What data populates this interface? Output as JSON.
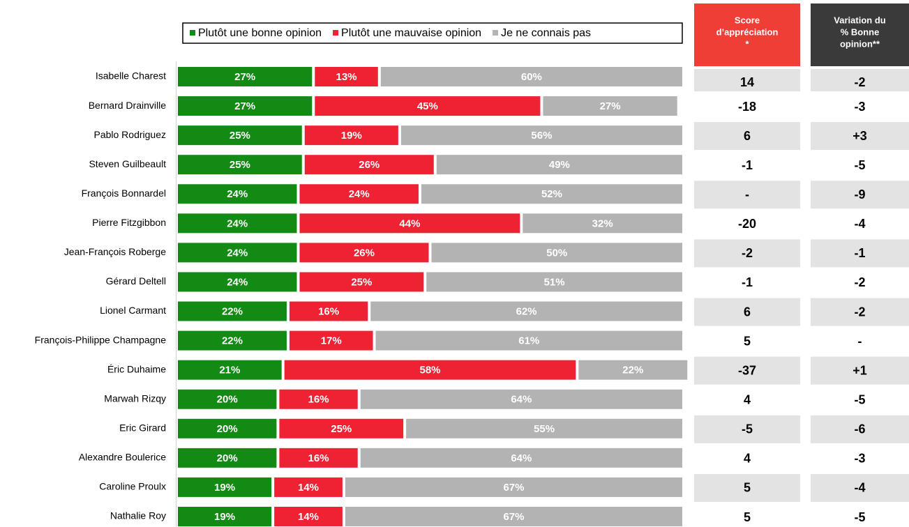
{
  "chart_data": {
    "type": "stacked-bar-horizontal",
    "categories": [
      "Isabelle Charest",
      "Bernard Drainville",
      "Pablo Rodriguez",
      "Steven Guilbeault",
      "François Bonnardel",
      "Pierre Fitzgibbon",
      "Jean-François Roberge",
      "Gérard Deltell",
      "Lionel Carmant",
      "François-Philippe Champagne",
      "Éric Duhaime",
      "Marwah Rizqy",
      "Eric Girard",
      "Alexandre Boulerice",
      "Caroline Proulx",
      "Nathalie Roy"
    ],
    "xlim": [
      0,
      100
    ],
    "series": [
      {
        "name": "Plutôt une bonne opinion",
        "color": "#138a13",
        "values": [
          27,
          27,
          25,
          25,
          24,
          24,
          24,
          24,
          22,
          22,
          21,
          20,
          20,
          20,
          19,
          19
        ],
        "value_labels": [
          "27%",
          "27%",
          "25%",
          "25%",
          "24%",
          "24%",
          "24%",
          "24%",
          "22%",
          "22%",
          "21%",
          "20%",
          "20%",
          "20%",
          "19%",
          "19%"
        ]
      },
      {
        "name": "Plutôt une mauvaise opinion",
        "color": "#ee2233",
        "values": [
          13,
          45,
          19,
          26,
          24,
          44,
          26,
          25,
          16,
          17,
          58,
          16,
          25,
          16,
          14,
          14
        ],
        "value_labels": [
          "13%",
          "45%",
          "19%",
          "26%",
          "24%",
          "44%",
          "26%",
          "25%",
          "16%",
          "17%",
          "58%",
          "16%",
          "25%",
          "16%",
          "14%",
          "14%"
        ]
      },
      {
        "name": "Je ne connais pas",
        "color": "#b3b3b3",
        "values": [
          60,
          27,
          56,
          49,
          52,
          32,
          50,
          51,
          62,
          61,
          22,
          64,
          55,
          64,
          67,
          67
        ],
        "value_labels": [
          "60%",
          "27%",
          "56%",
          "49%",
          "52%",
          "32%",
          "50%",
          "51%",
          "62%",
          "61%",
          "22%",
          "64%",
          "55%",
          "64%",
          "67%",
          "67%"
        ]
      }
    ],
    "table": {
      "columns": [
        {
          "header": [
            "Score",
            "d’appréciation",
            "*"
          ],
          "color": "#ef3e36",
          "values": [
            "14",
            "-18",
            "6",
            "-1",
            "-",
            "-20",
            "-2",
            "-1",
            "6",
            "5",
            "-37",
            "4",
            "-5",
            "4",
            "5",
            "5"
          ]
        },
        {
          "header": [
            "Variation du",
            "% Bonne",
            "opinion**"
          ],
          "color": "#3a3a3a",
          "values": [
            "-2",
            "-3",
            "+3",
            "-5",
            "-9",
            "-4",
            "-1",
            "-2",
            "-2",
            "-",
            "+1",
            "-5",
            "-6",
            "-3",
            "-4",
            "-5"
          ]
        }
      ]
    }
  }
}
